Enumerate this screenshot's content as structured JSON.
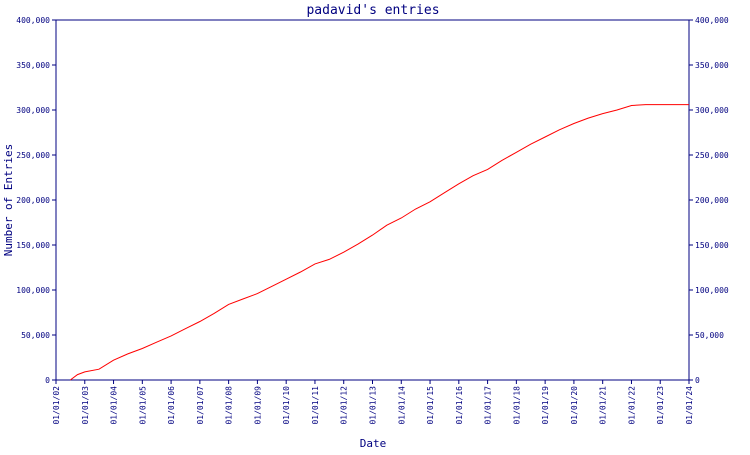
{
  "chart_data": {
    "type": "line",
    "title": "padavid's entries",
    "xlabel": "Date",
    "ylabel": "Number of Entries",
    "ylim": [
      0,
      400000
    ],
    "y_ticks": [
      0,
      50000,
      100000,
      150000,
      200000,
      250000,
      300000,
      350000,
      400000
    ],
    "y_tick_labels": [
      "0",
      "50,000",
      "100,000",
      "150,000",
      "200,000",
      "250,000",
      "300,000",
      "350,000",
      "400,000"
    ],
    "x_tick_labels": [
      "01/01/02",
      "01/01/03",
      "01/01/04",
      "01/01/05",
      "01/01/06",
      "01/01/07",
      "01/01/08",
      "01/01/09",
      "01/01/10",
      "01/01/11",
      "01/01/12",
      "01/01/13",
      "01/01/14",
      "01/01/15",
      "01/01/16",
      "01/01/17",
      "01/01/18",
      "01/01/19",
      "01/01/20",
      "01/01/21",
      "01/01/22",
      "01/01/23",
      "01/01/24"
    ],
    "grid": false,
    "axis_color": "#000080",
    "line_color": "#ff0000",
    "series": [
      {
        "x": [
          "2002-07-01",
          "2002-10-01",
          "2003-01-01",
          "2003-07-01",
          "2004-01-01",
          "2004-07-01",
          "2005-01-01",
          "2005-07-01",
          "2006-01-01",
          "2006-07-01",
          "2007-01-01",
          "2007-07-01",
          "2008-01-01",
          "2008-07-01",
          "2009-01-01",
          "2009-07-01",
          "2010-01-01",
          "2010-07-01",
          "2011-01-01",
          "2011-07-01",
          "2012-01-01",
          "2012-07-01",
          "2013-01-01",
          "2013-07-01",
          "2014-01-01",
          "2014-07-01",
          "2015-01-01",
          "2015-07-01",
          "2016-01-01",
          "2016-07-01",
          "2017-01-01",
          "2017-07-01",
          "2018-01-01",
          "2018-07-01",
          "2019-01-01",
          "2019-07-01",
          "2020-01-01",
          "2020-07-01",
          "2021-01-01",
          "2021-07-01",
          "2022-01-01",
          "2022-07-01",
          "2023-01-01",
          "2023-07-01",
          "2024-01-01"
        ],
        "y": [
          0,
          6000,
          9000,
          12000,
          22000,
          29000,
          35000,
          42000,
          49000,
          57000,
          65000,
          74000,
          84000,
          90000,
          96000,
          104000,
          112000,
          120000,
          129000,
          134000,
          142000,
          151000,
          161000,
          172000,
          180000,
          190000,
          198000,
          208000,
          218000,
          227000,
          234000,
          244000,
          253000,
          262000,
          270000,
          278000,
          285000,
          291000,
          296000,
          300000,
          305000,
          306000,
          306000,
          306000,
          306000
        ]
      }
    ]
  }
}
